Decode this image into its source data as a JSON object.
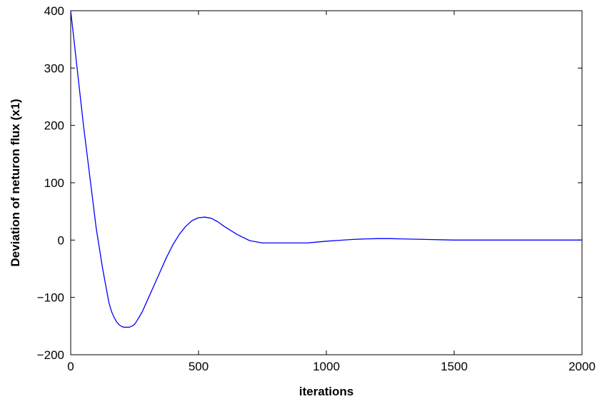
{
  "chart_data": {
    "type": "line",
    "title": "",
    "xlabel": "iterations",
    "ylabel": "Deviation of neturon flux (x1)",
    "xlim": [
      0,
      2000
    ],
    "ylim": [
      -200,
      400
    ],
    "xticks": [
      0,
      500,
      1000,
      1500,
      2000
    ],
    "yticks": [
      -200,
      -100,
      0,
      100,
      200,
      300,
      400
    ],
    "xtick_labels": [
      "0",
      "500",
      "1000",
      "1500",
      "2000"
    ],
    "ytick_labels": [
      "−200",
      "−100",
      "0",
      "100",
      "200",
      "300",
      "400"
    ],
    "grid": false,
    "series": [
      {
        "color": "#0000ff",
        "x": [
          0,
          10,
          25,
          50,
          75,
          100,
          125,
          150,
          160,
          170,
          180,
          190,
          200,
          210,
          220,
          230,
          240,
          250,
          260,
          280,
          300,
          325,
          350,
          375,
          400,
          425,
          450,
          475,
          500,
          525,
          550,
          575,
          600,
          650,
          700,
          750,
          800,
          850,
          900,
          925,
          950,
          1000,
          1050,
          1100,
          1150,
          1200,
          1250,
          1300,
          1350,
          1400,
          1450,
          1500,
          1600,
          1700,
          1800,
          1900,
          2000
        ],
        "y": [
          400,
          360,
          300,
          200,
          110,
          20,
          -50,
          -110,
          -125,
          -135,
          -143,
          -148,
          -151,
          -152,
          -152,
          -152,
          -150,
          -147,
          -140,
          -125,
          -105,
          -80,
          -55,
          -30,
          -8,
          10,
          24,
          34,
          39,
          40,
          38,
          32,
          24,
          10,
          -1,
          -5,
          -5,
          -5,
          -5,
          -5,
          -4,
          -2,
          -0.5,
          1,
          2,
          2.5,
          2.5,
          2,
          1.5,
          1,
          0.5,
          0,
          0,
          0,
          0,
          0,
          0
        ]
      }
    ]
  }
}
